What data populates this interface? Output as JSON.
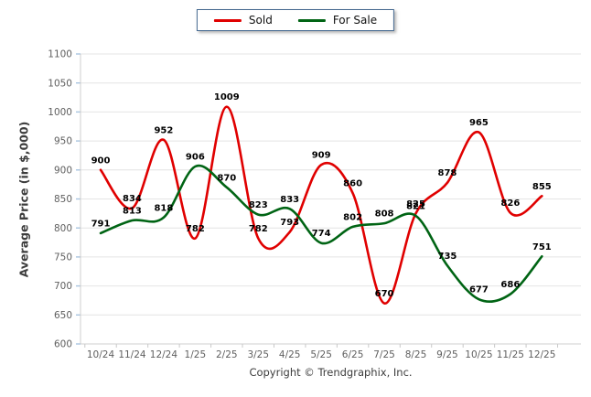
{
  "chart_data": {
    "type": "line",
    "categories": [
      "10/24",
      "11/24",
      "12/24",
      "1/25",
      "2/25",
      "3/25",
      "4/25",
      "5/25",
      "6/25",
      "7/25",
      "8/25",
      "9/25",
      "10/25",
      "11/25",
      "12/25"
    ],
    "series": [
      {
        "name": "Sold",
        "color": "#e00000",
        "values": [
          900,
          834,
          952,
          782,
          1009,
          782,
          793,
          909,
          860,
          670,
          825,
          878,
          965,
          826,
          855
        ]
      },
      {
        "name": "For Sale",
        "color": "#006414",
        "values": [
          791,
          813,
          818,
          906,
          870,
          823,
          833,
          774,
          802,
          808,
          821,
          735,
          677,
          686,
          751
        ]
      }
    ],
    "title": "",
    "xlabel": "",
    "ylabel": "Average Price (in $,000)",
    "ylim": [
      600,
      1100
    ],
    "yticks": [
      600,
      650,
      700,
      750,
      800,
      850,
      900,
      950,
      1000,
      1050,
      1100
    ],
    "grid": true,
    "data_labels": true,
    "legend_position": "top-center",
    "colors": {
      "gridline": "#e4e4e4",
      "axis_line": "#cfcfcf",
      "y_tick_mark": "#a8c4e0",
      "x_tick_mark": "#c9c9c9",
      "tick_label": "#5f5f5f",
      "data_label": "#000000",
      "legend_border": "#44688f"
    }
  },
  "footer": {
    "copyright": "Copyright © Trendgraphix, Inc."
  }
}
